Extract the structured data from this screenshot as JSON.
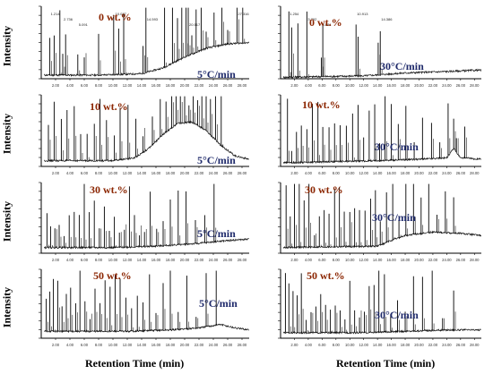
{
  "x_axis_label": "Retention Time (min)",
  "y_axis_label": "Intensity",
  "chart_data": [
    {
      "type": "line",
      "panel": "5C-0",
      "concentration": "0 wt.%",
      "heating_rate": "5°C/min",
      "ylabel": "Intensity",
      "xlabel": "",
      "xlim": [
        0,
        29
      ],
      "tick_labels": [
        "2.00",
        "4.00",
        "6.00",
        "8.00",
        "10.00",
        "12.00",
        "14.00",
        "16.00",
        "18.00",
        "20.00",
        "22.00",
        "24.00",
        "26.00",
        "28.00"
      ],
      "peak_labels": [
        {
          "text": "1.214",
          "x": 1.2
        },
        {
          "text": "2.736",
          "x": 3.0
        },
        {
          "text": "5.091",
          "x": 5.1
        },
        {
          "text": "10.077",
          "x": 10.2
        },
        {
          "text": "14.593",
          "x": 14.6
        },
        {
          "text": "20.517",
          "x": 20.5
        },
        {
          "text": "27.316",
          "x": 27.3
        }
      ],
      "peaks_x": [
        1.2,
        1.8,
        2.6,
        3.0,
        3.4,
        5.1,
        6.0,
        8.0,
        10.1,
        10.8,
        11.5,
        14.2,
        14.6,
        17.2,
        18.3,
        19.0,
        19.6,
        20.2,
        20.5,
        21.0,
        21.6,
        22.3,
        23.0,
        24.1,
        25.2,
        26.0,
        27.3,
        28.1
      ],
      "baseline": [
        [
          0,
          0.05
        ],
        [
          8,
          0.05
        ],
        [
          14,
          0.07
        ],
        [
          17,
          0.15
        ],
        [
          20,
          0.3
        ],
        [
          23,
          0.42
        ],
        [
          26,
          0.48
        ],
        [
          29,
          0.5
        ]
      ]
    },
    {
      "type": "line",
      "panel": "30C-0",
      "concentration": "0 wt.%",
      "heating_rate": "30°C/min",
      "ylabel": "",
      "xlabel": "",
      "xlim": [
        0,
        29
      ],
      "tick_labels": [
        "2.00",
        "4.00",
        "6.00",
        "8.00",
        "10.00",
        "12.00",
        "14.00",
        "16.00",
        "18.00",
        "20.00",
        "22.00",
        "24.00",
        "26.00",
        "28.00"
      ],
      "peak_labels": [
        {
          "text": "1.254",
          "x": 1.2
        },
        {
          "text": "3.792",
          "x": 3.8
        },
        {
          "text": "5.881",
          "x": 5.9
        },
        {
          "text": "10.913",
          "x": 10.9
        },
        {
          "text": "14.386",
          "x": 14.4
        }
      ],
      "peaks_x": [
        1.2,
        1.6,
        2.5,
        3.8,
        5.9,
        6.1,
        10.9,
        11.2,
        14.1,
        14.4
      ],
      "baseline": [
        [
          0,
          0.02
        ],
        [
          12,
          0.04
        ],
        [
          18,
          0.08
        ],
        [
          24,
          0.1
        ],
        [
          29,
          0.12
        ]
      ]
    },
    {
      "type": "line",
      "panel": "5C-10",
      "concentration": "10 wt.%",
      "heating_rate": "5°C/min",
      "ylabel": "Intensity",
      "xlabel": "",
      "xlim": [
        0,
        29
      ],
      "tick_labels": [
        "2.00",
        "4.00",
        "6.00",
        "8.00",
        "10.00",
        "12.00",
        "14.00",
        "16.00",
        "18.00",
        "20.00",
        "22.00",
        "24.00",
        "26.00",
        "28.00"
      ],
      "peaks_x": [
        1.0,
        1.8,
        2.8,
        3.6,
        4.6,
        5.5,
        6.4,
        7.4,
        8.2,
        9.1,
        10.2,
        11.0,
        12.1,
        13.2,
        14.2,
        15.5,
        16.6,
        17.4,
        18.2,
        18.8,
        19.4,
        20.0,
        20.6,
        21.2,
        21.8,
        22.4,
        23.0,
        23.6,
        24.3,
        25.1
      ],
      "baseline": [
        [
          0,
          0.08
        ],
        [
          10,
          0.08
        ],
        [
          13,
          0.12
        ],
        [
          15,
          0.25
        ],
        [
          17,
          0.45
        ],
        [
          19,
          0.6
        ],
        [
          21,
          0.62
        ],
        [
          23,
          0.5
        ],
        [
          25,
          0.3
        ],
        [
          27,
          0.15
        ],
        [
          29,
          0.1
        ]
      ]
    },
    {
      "type": "line",
      "panel": "30C-10",
      "concentration": "10 wt.%",
      "heating_rate": "30°C/min",
      "ylabel": "",
      "xlabel": "",
      "xlim": [
        0,
        29
      ],
      "tick_labels": [
        "2.00",
        "4.00",
        "6.00",
        "8.00",
        "10.00",
        "12.00",
        "14.00",
        "16.00",
        "18.00",
        "20.00",
        "22.00",
        "24.00",
        "26.00",
        "28.00"
      ],
      "peaks_x": [
        1.0,
        1.6,
        2.3,
        3.0,
        3.8,
        4.6,
        5.4,
        6.1,
        7.0,
        7.8,
        8.6,
        9.5,
        10.4,
        11.2,
        12.0,
        12.8,
        13.6,
        14.3,
        15.1,
        16.0,
        17.0,
        18.1,
        19.3,
        20.5,
        21.8,
        23.0,
        24.2,
        25.0,
        25.4,
        26.6
      ],
      "baseline": [
        [
          0,
          0.05
        ],
        [
          14,
          0.08
        ],
        [
          20,
          0.1
        ],
        [
          24,
          0.12
        ],
        [
          25,
          0.25
        ],
        [
          26,
          0.12
        ],
        [
          29,
          0.1
        ]
      ]
    },
    {
      "type": "line",
      "panel": "5C-30",
      "concentration": "30 wt.%",
      "heating_rate": "5°C/min",
      "ylabel": "Intensity",
      "xlabel": "",
      "xlim": [
        0,
        29
      ],
      "tick_labels": [
        "2.00",
        "4.00",
        "6.00",
        "8.00",
        "10.00",
        "12.00",
        "14.00",
        "16.00",
        "18.00",
        "20.00",
        "22.00",
        "24.00",
        "26.00",
        "28.00"
      ],
      "peaks_x": [
        0.8,
        1.3,
        1.9,
        2.5,
        3.2,
        3.9,
        4.6,
        5.3,
        6.0,
        6.7,
        7.4,
        8.1,
        8.8,
        9.5,
        10.2,
        10.9,
        11.6,
        12.3,
        13.0,
        13.7,
        14.4,
        15.2,
        16.1,
        17.0,
        18.0,
        19.1,
        20.2,
        21.5,
        22.8,
        24.1
      ],
      "baseline": [
        [
          0,
          0.08
        ],
        [
          10,
          0.08
        ],
        [
          16,
          0.1
        ],
        [
          22,
          0.14
        ],
        [
          26,
          0.18
        ],
        [
          29,
          0.2
        ]
      ]
    },
    {
      "type": "line",
      "panel": "30C-30",
      "concentration": "30 wt.%",
      "heating_rate": "30°C/min",
      "ylabel": "",
      "xlabel": "",
      "xlim": [
        0,
        29
      ],
      "tick_labels": [
        "2.00",
        "4.00",
        "6.00",
        "8.00",
        "10.00",
        "12.00",
        "14.00",
        "16.00",
        "18.00",
        "20.00",
        "22.00",
        "24.00",
        "26.00",
        "28.00"
      ],
      "peaks_x": [
        0.8,
        1.4,
        2.0,
        2.7,
        3.4,
        4.1,
        4.9,
        5.6,
        6.3,
        7.0,
        7.8,
        8.5,
        9.2,
        10.0,
        10.7,
        11.4,
        12.2,
        13.0,
        13.7,
        14.4,
        15.3,
        16.2,
        17.1,
        18.1,
        19.2,
        20.3,
        21.4,
        22.6,
        23.8,
        25.0
      ],
      "baseline": [
        [
          0,
          0.08
        ],
        [
          14,
          0.1
        ],
        [
          16,
          0.18
        ],
        [
          18,
          0.25
        ],
        [
          22,
          0.3
        ],
        [
          26,
          0.28
        ],
        [
          29,
          0.25
        ]
      ]
    },
    {
      "type": "line",
      "panel": "5C-50",
      "concentration": "50 wt.%",
      "heating_rate": "5°C/min",
      "ylabel": "Intensity",
      "xlabel": "Retention Time (min)",
      "xlim": [
        0,
        29
      ],
      "tick_labels": [
        "2.00",
        "4.00",
        "6.00",
        "8.00",
        "10.00",
        "12.00",
        "14.00",
        "16.00",
        "18.00",
        "20.00",
        "22.00",
        "24.00",
        "26.00",
        "28.00"
      ],
      "peaks_x": [
        0.7,
        1.2,
        1.7,
        2.3,
        2.9,
        3.5,
        4.1,
        4.8,
        5.4,
        6.1,
        6.8,
        7.5,
        8.2,
        8.9,
        9.6,
        10.3,
        11.0,
        11.8,
        12.6,
        13.4,
        14.2,
        15.1,
        16.0,
        17.0,
        18.0,
        19.1,
        20.3,
        21.6,
        23.0,
        24.4
      ],
      "baseline": [
        [
          0,
          0.1
        ],
        [
          12,
          0.1
        ],
        [
          18,
          0.12
        ],
        [
          22,
          0.15
        ],
        [
          25,
          0.2
        ],
        [
          27,
          0.15
        ],
        [
          29,
          0.12
        ]
      ]
    },
    {
      "type": "line",
      "panel": "30C-50",
      "concentration": "50 wt.%",
      "heating_rate": "30°C/min",
      "ylabel": "",
      "xlabel": "Retention Time (min)",
      "xlim": [
        0,
        29
      ],
      "tick_labels": [
        "2.00",
        "4.00",
        "6.00",
        "8.00",
        "10.00",
        "12.00",
        "14.00",
        "16.00",
        "18.00",
        "20.00",
        "22.00",
        "24.00",
        "26.00",
        "28.00"
      ],
      "peaks_x": [
        0.7,
        1.2,
        1.8,
        2.4,
        3.0,
        3.7,
        4.4,
        5.1,
        5.8,
        6.5,
        7.2,
        7.9,
        8.6,
        9.3,
        10.0,
        10.7,
        11.4,
        12.1,
        12.8,
        13.5,
        14.2,
        15.0,
        15.9,
        16.9,
        18.0,
        19.2,
        20.5,
        21.9,
        23.4,
        25.0
      ],
      "baseline": [
        [
          0,
          0.08
        ],
        [
          12,
          0.08
        ],
        [
          18,
          0.1
        ],
        [
          24,
          0.12
        ],
        [
          29,
          0.12
        ]
      ]
    }
  ]
}
